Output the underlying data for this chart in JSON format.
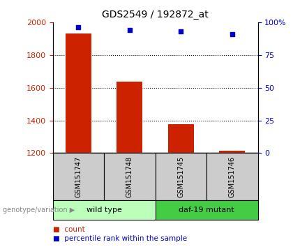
{
  "title": "GDS2549 / 192872_at",
  "samples": [
    "GSM151747",
    "GSM151748",
    "GSM151745",
    "GSM151746"
  ],
  "counts": [
    1930,
    1635,
    1375,
    1215
  ],
  "percentile_ranks": [
    96,
    94,
    93,
    91
  ],
  "ylim_left": [
    1200,
    2000
  ],
  "ylim_right": [
    0,
    100
  ],
  "yticks_left": [
    1200,
    1400,
    1600,
    1800,
    2000
  ],
  "yticks_right": [
    0,
    25,
    50,
    75,
    100
  ],
  "yticklabels_right": [
    "0",
    "25",
    "50",
    "75",
    "100%"
  ],
  "bar_color": "#cc2200",
  "dot_color": "#0000cc",
  "left_tick_color": "#cc2200",
  "right_tick_color": "#0000cc",
  "grid_color": "#000000",
  "group1_label": "wild type",
  "group2_label": "daf-19 mutant",
  "group1_color": "#bbffbb",
  "group2_color": "#44cc44",
  "group_row_label": "genotype/variation",
  "legend_count_label": "count",
  "legend_pct_label": "percentile rank within the sample",
  "sample_col_bg": "#cccccc",
  "bar_width": 0.5
}
